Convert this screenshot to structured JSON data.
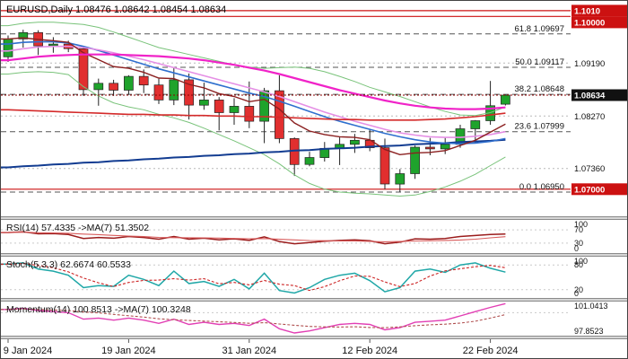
{
  "window": {
    "title_symbol": "EURUSD,Daily",
    "title_ohlc": "1.08476 1.08642 1.08454 1.08634"
  },
  "colors": {
    "background": "#ffffff",
    "candle_up": "#1fa32c",
    "candle_down": "#e12f2f",
    "wick": "#222222",
    "grid": "#b8b8b8",
    "fib_line": "#555555",
    "level_red": "#cc1111",
    "badge_red": "#cc1111",
    "badge_current": "#111111",
    "text": "#111111"
  },
  "chart_data": {
    "type": "candlestick",
    "symbol": "EURUSD",
    "timeframe": "Daily",
    "ohlc": {
      "open": 1.08476,
      "high": 1.08642,
      "low": 1.08454,
      "close": 1.08634
    },
    "price_range": {
      "top": 1.1027,
      "bottom": 1.0653
    },
    "candles": [
      [
        1.093,
        1.0967,
        1.0921,
        1.0961
      ],
      [
        1.0961,
        1.0977,
        1.0946,
        1.0972
      ],
      [
        1.0972,
        1.0976,
        1.0933,
        1.0949
      ],
      [
        1.0949,
        1.0964,
        1.0937,
        1.0952
      ],
      [
        1.0952,
        1.0958,
        1.0938,
        1.0944
      ],
      [
        1.0944,
        1.0949,
        1.0862,
        1.0873
      ],
      [
        1.0873,
        1.0892,
        1.0845,
        1.0884
      ],
      [
        1.0884,
        1.089,
        1.0862,
        1.0872
      ],
      [
        1.0872,
        1.0898,
        1.0864,
        1.0896
      ],
      [
        1.0896,
        1.0908,
        1.0867,
        1.0881
      ],
      [
        1.0881,
        1.0892,
        1.0848,
        1.0855
      ],
      [
        1.0855,
        1.0912,
        1.0846,
        1.089
      ],
      [
        1.089,
        1.0901,
        1.0821,
        1.0846
      ],
      [
        1.0846,
        1.0885,
        1.0838,
        1.0855
      ],
      [
        1.0855,
        1.086,
        1.0802,
        1.0833
      ],
      [
        1.0833,
        1.0858,
        1.0812,
        1.0844
      ],
      [
        1.0844,
        1.0887,
        1.0806,
        1.0818
      ],
      [
        1.0818,
        1.0876,
        1.078,
        1.0871
      ],
      [
        1.0871,
        1.0898,
        1.078,
        1.0788
      ],
      [
        1.0788,
        1.079,
        1.0723,
        1.0743
      ],
      [
        1.0743,
        1.0765,
        1.074,
        1.0755
      ],
      [
        1.0755,
        1.0782,
        1.0748,
        1.0771
      ],
      [
        1.0771,
        1.079,
        1.0742,
        1.0778
      ],
      [
        1.0778,
        1.0796,
        1.0763,
        1.0785
      ],
      [
        1.0785,
        1.0805,
        1.0766,
        1.0772
      ],
      [
        1.0772,
        1.0788,
        1.07,
        1.0709
      ],
      [
        1.0709,
        1.0735,
        1.0695,
        1.0727
      ],
      [
        1.0727,
        1.0776,
        1.0718,
        1.0773
      ],
      [
        1.0773,
        1.0789,
        1.0759,
        1.077
      ],
      [
        1.077,
        1.0789,
        1.0761,
        1.0778
      ],
      [
        1.0778,
        1.0812,
        1.0772,
        1.0805
      ],
      [
        1.0805,
        1.082,
        1.0781,
        1.0819
      ],
      [
        1.0819,
        1.0888,
        1.0812,
        1.0845
      ],
      [
        1.08476,
        1.08642,
        1.08454,
        1.08634
      ]
    ],
    "overlays": [
      {
        "name": "bollinger-lower",
        "color": "#79c37a",
        "width": 1,
        "values": [
          1.09,
          1.0903,
          1.0904,
          1.0903,
          1.0899,
          1.0878,
          1.0862,
          1.085,
          1.0843,
          1.0838,
          1.083,
          1.0824,
          1.0816,
          1.0806,
          1.0795,
          1.0784,
          1.0772,
          1.076,
          1.0744,
          1.0725,
          1.071,
          1.07,
          1.0695,
          1.0693,
          1.0692,
          1.069,
          1.0688,
          1.069,
          1.0696,
          1.0704,
          1.0714,
          1.0726,
          1.0741,
          1.0756
        ]
      },
      {
        "name": "bollinger-upper",
        "color": "#79c37a",
        "width": 1,
        "values": [
          1.0984,
          1.0988,
          1.099,
          1.099,
          1.0988,
          1.0986,
          1.0981,
          1.0973,
          1.0964,
          1.0955,
          1.0946,
          1.094,
          1.0934,
          1.0928,
          1.0922,
          1.0916,
          1.0912,
          1.091,
          1.0911,
          1.0912,
          1.091,
          1.0904,
          1.0896,
          1.0887,
          1.0877,
          1.0869,
          1.0861,
          1.0852,
          1.0843,
          1.0835,
          1.0829,
          1.0828,
          1.0833,
          1.0843
        ]
      },
      {
        "name": "ma-200-navy",
        "color": "#123c91",
        "width": 2,
        "values": [
          1.0738,
          1.074,
          1.0741,
          1.0743,
          1.0744,
          1.0746,
          1.0747,
          1.0749,
          1.075,
          1.0752,
          1.0753,
          1.0755,
          1.0756,
          1.0758,
          1.0759,
          1.0761,
          1.0762,
          1.0764,
          1.0765,
          1.0767,
          1.0768,
          1.077,
          1.0771,
          1.0772,
          1.0774,
          1.0775,
          1.0776,
          1.0778,
          1.0779,
          1.078,
          1.0782,
          1.0783,
          1.0784,
          1.0786
        ]
      },
      {
        "name": "ma-blue",
        "color": "#2f6fce",
        "width": 1.6,
        "values": [
          1.0952,
          1.0955,
          1.0956,
          1.0956,
          1.0954,
          1.0948,
          1.0941,
          1.0933,
          1.0925,
          1.0917,
          1.0909,
          1.0902,
          1.0895,
          1.0888,
          1.0881,
          1.0874,
          1.0867,
          1.0861,
          1.0853,
          1.0844,
          1.0835,
          1.0826,
          1.0818,
          1.0811,
          1.0804,
          1.0797,
          1.0791,
          1.0786,
          1.0782,
          1.078,
          1.0779,
          1.078,
          1.0783,
          1.0788
        ]
      },
      {
        "name": "ma-violet",
        "color": "#e58fe5",
        "width": 1.6,
        "values": [
          1.094,
          1.0944,
          1.0947,
          1.0948,
          1.0948,
          1.0946,
          1.0942,
          1.0937,
          1.0931,
          1.0925,
          1.0918,
          1.0911,
          1.0904,
          1.0897,
          1.089,
          1.0883,
          1.0876,
          1.0869,
          1.0861,
          1.0852,
          1.0843,
          1.0834,
          1.0826,
          1.0818,
          1.0811,
          1.0804,
          1.0798,
          1.0794,
          1.0791,
          1.079,
          1.079,
          1.0792,
          1.0795,
          1.08
        ]
      },
      {
        "name": "ma-red",
        "color": "#d42a2a",
        "width": 1.6,
        "values": [
          1.0838,
          1.0837,
          1.0836,
          1.0835,
          1.0834,
          1.0833,
          1.0832,
          1.0831,
          1.083,
          1.083,
          1.0829,
          1.0829,
          1.0828,
          1.0828,
          1.0827,
          1.0827,
          1.0826,
          1.0826,
          1.0825,
          1.0824,
          1.0823,
          1.0822,
          1.0821,
          1.0821,
          1.082,
          1.082,
          1.082,
          1.082,
          1.0821,
          1.0822,
          1.0824,
          1.0826,
          1.0829,
          1.0832
        ]
      },
      {
        "name": "ema-maroon",
        "color": "#8b2020",
        "width": 1.4,
        "values": [
          1.0961,
          1.0963,
          1.096,
          1.0958,
          1.0955,
          1.0937,
          1.0925,
          1.0913,
          1.091,
          1.0903,
          1.0893,
          1.0892,
          1.0882,
          1.0876,
          1.0866,
          1.0861,
          1.0852,
          1.0856,
          1.0839,
          1.0815,
          1.0801,
          1.0795,
          1.0791,
          1.079,
          1.0786,
          1.0769,
          1.076,
          1.0763,
          1.0764,
          1.0767,
          1.0776,
          1.0785,
          1.0799,
          1.0813
        ]
      },
      {
        "name": "ma-magenta",
        "color": "#f023c8",
        "width": 2.2,
        "values": [
          1.0924,
          1.0927,
          1.093,
          1.0932,
          1.0933,
          1.0934,
          1.0934,
          1.0934,
          1.0933,
          1.0932,
          1.0931,
          1.0929,
          1.0927,
          1.0924,
          1.092,
          1.0916,
          1.0911,
          1.0906,
          1.09,
          1.0893,
          1.0886,
          1.0879,
          1.0872,
          1.0866,
          1.086,
          1.0854,
          1.0849,
          1.0845,
          1.0842,
          1.084,
          1.0839,
          1.0839,
          1.084,
          1.0842
        ]
      }
    ],
    "fib_levels": [
      {
        "label": "61.8 1.09697",
        "price": 1.09697
      },
      {
        "label": "50.0 1.09117",
        "price": 1.09117
      },
      {
        "label": "38.2 1.08648",
        "price": 1.08648
      },
      {
        "label": "23.6 1.07999",
        "price": 1.07999
      },
      {
        "label": "0.0 1.06950",
        "price": 1.0695
      }
    ],
    "grid_labels": [
      {
        "text": "1.09190",
        "price": 1.0919
      },
      {
        "text": "1.08270",
        "price": 1.0827
      },
      {
        "text": "1.07360",
        "price": 1.0736
      }
    ],
    "level_lines": [
      {
        "text": "1.1010",
        "price": 1.101
      },
      {
        "text": "1.10000",
        "price": 1.1
      },
      {
        "text": "1.07000",
        "price": 1.07
      }
    ],
    "current_price": {
      "text": "1.08634",
      "price": 1.08634
    },
    "time_labels": [
      {
        "text": "9 Jan 2024",
        "index": 0
      },
      {
        "text": "19 Jan 2024",
        "index": 8
      },
      {
        "text": "31 Jan 2024",
        "index": 16
      },
      {
        "text": "12 Feb 2024",
        "index": 24
      },
      {
        "text": "22 Feb 2024",
        "index": 32
      }
    ],
    "indicators": {
      "rsi": {
        "label": "RSI(14) 57.4335 ->MA(7) 51.3502",
        "range": [
          0,
          100
        ],
        "axis_labels": [
          {
            "text": "100",
            "value": 100
          },
          {
            "text": "70",
            "value": 70
          },
          {
            "text": "30",
            "value": 30
          },
          {
            "text": "0",
            "value": 0
          }
        ],
        "guides": [
          70,
          30
        ],
        "color": "#9b1c1c",
        "ma_color": "#d85c5c",
        "ma_period": 7,
        "values": [
          62,
          64,
          58,
          59,
          56,
          44,
          47,
          45,
          50,
          47,
          42,
          50,
          42,
          45,
          40,
          43,
          38,
          49,
          35,
          28,
          32,
          36,
          38,
          40,
          37,
          28,
          33,
          43,
          42,
          44,
          50,
          53,
          56,
          57.4
        ]
      },
      "stoch": {
        "label": "Stoch(5,3,3) 62.6674 60.5533",
        "range": [
          0,
          100
        ],
        "axis_labels": [
          {
            "text": "100",
            "value": 100
          },
          {
            "text": "80",
            "value": 80
          },
          {
            "text": "20",
            "value": 20
          },
          {
            "text": "0",
            "value": 0
          }
        ],
        "guides": [
          80,
          20
        ],
        "k_color": "#1fa7a7",
        "d_color": "#cc2222",
        "d_period": 3,
        "k": [
          82,
          85,
          70,
          65,
          55,
          25,
          30,
          28,
          55,
          45,
          30,
          65,
          35,
          40,
          28,
          45,
          22,
          60,
          18,
          12,
          25,
          45,
          55,
          60,
          42,
          15,
          25,
          65,
          70,
          62,
          80,
          85,
          72,
          62.7
        ]
      },
      "momentum": {
        "label": "Momentum(14) 100.8513 ->MA(7) 100.3248",
        "range": [
          97.8523,
          101.0413
        ],
        "axis_labels": [
          {
            "text": "101.0413",
            "value": 101.0413
          },
          {
            "text": "97.8523",
            "value": 97.8523
          }
        ],
        "guides": [
          100
        ],
        "color": "#e23fb4",
        "ma_color": "#b05050",
        "ma_period": 7,
        "values": [
          100.3,
          100.4,
          100.2,
          100.1,
          100.0,
          99.4,
          99.5,
          99.3,
          99.5,
          99.3,
          99.0,
          99.4,
          98.9,
          99.1,
          98.9,
          99.0,
          98.8,
          99.4,
          98.5,
          98.1,
          98.3,
          98.6,
          98.9,
          99.0,
          98.9,
          98.4,
          98.6,
          99.1,
          99.2,
          99.3,
          99.7,
          100.1,
          100.5,
          100.85
        ]
      }
    }
  }
}
